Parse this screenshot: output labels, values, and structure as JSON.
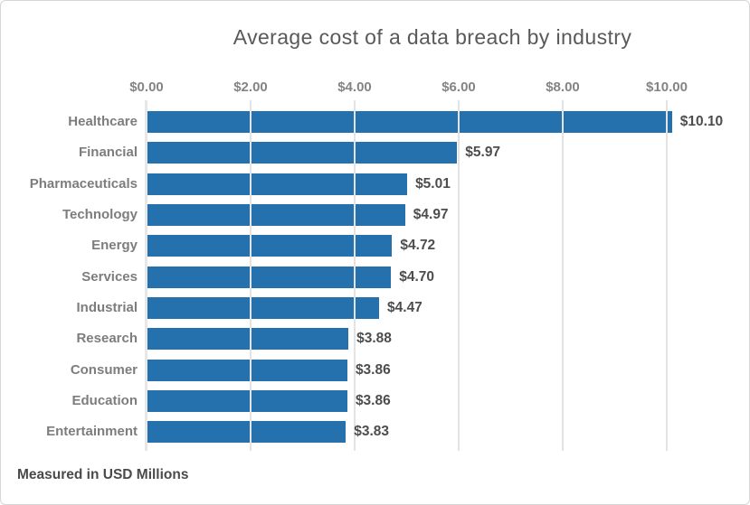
{
  "chart_data": {
    "type": "bar",
    "orientation": "horizontal",
    "title": "Average cost of a data breach by industry",
    "note": "Measured in USD Millions",
    "categories": [
      "Healthcare",
      "Financial",
      "Pharmaceuticals",
      "Technology",
      "Energy",
      "Services",
      "Industrial",
      "Research",
      "Consumer",
      "Education",
      "Entertainment"
    ],
    "values": [
      10.1,
      5.97,
      5.01,
      4.97,
      4.72,
      4.7,
      4.47,
      3.88,
      3.86,
      3.86,
      3.83
    ],
    "value_labels": [
      "$10.10",
      "$5.97",
      "$5.01",
      "$4.97",
      "$4.72",
      "$4.70",
      "$4.47",
      "$3.88",
      "$3.86",
      "$3.86",
      "$3.83"
    ],
    "x_axis": {
      "tick_labels": [
        "$0.00",
        "$2.00",
        "$4.00",
        "$6.00",
        "$8.00",
        "$10.00"
      ],
      "tick_values": [
        0,
        2,
        4,
        6,
        8,
        10
      ],
      "range": [
        0,
        10.5
      ],
      "position": "top"
    },
    "grid": "vertical",
    "legend": "none",
    "colors": {
      "bar": "#2471AD",
      "gridline": "#e3e3e3",
      "axis_line": "#e7e7e7",
      "title_text": "#595959",
      "axis_text": "#848484",
      "category_text": "#7d7d7d",
      "value_text": "#4d4d4d",
      "note_text": "#4a4a4a",
      "border": "#d6d6d6",
      "background": "#ffffff"
    }
  }
}
